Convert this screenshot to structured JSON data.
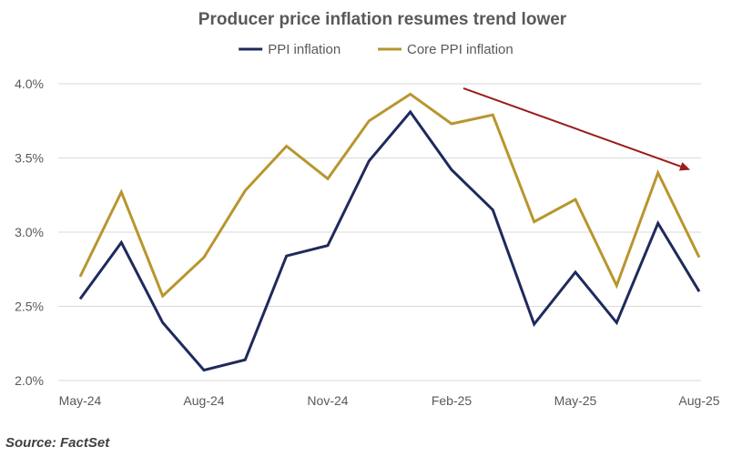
{
  "chart_data": {
    "type": "line",
    "title": "Producer price inflation resumes trend lower",
    "xlabel": "",
    "ylabel": "",
    "categories": [
      "May-24",
      "Jun-24",
      "Jul-24",
      "Aug-24",
      "Sep-24",
      "Oct-24",
      "Nov-24",
      "Dec-24",
      "Jan-25",
      "Feb-25",
      "Mar-25",
      "Apr-25",
      "May-25",
      "Jun-25",
      "Jul-25",
      "Aug-25"
    ],
    "x_tick_labels": [
      "May-24",
      "Aug-24",
      "Nov-24",
      "Feb-25",
      "May-25",
      "Aug-25"
    ],
    "ylim": [
      2.0,
      4.0
    ],
    "y_ticks": [
      2.0,
      2.5,
      3.0,
      3.5,
      4.0
    ],
    "y_tick_labels": [
      "2.0%",
      "2.5%",
      "3.0%",
      "3.5%",
      "4.0%"
    ],
    "grid": true,
    "legend_position": "top-center",
    "series": [
      {
        "name": "PPI inflation",
        "color": "#1f2a5c",
        "values": [
          2.55,
          2.93,
          2.39,
          2.07,
          2.14,
          2.84,
          2.91,
          3.48,
          3.81,
          3.42,
          3.15,
          2.38,
          2.73,
          2.39,
          3.06,
          2.6
        ]
      },
      {
        "name": "Core PPI inflation",
        "color": "#b8962e",
        "values": [
          2.7,
          3.27,
          2.57,
          2.83,
          3.28,
          3.58,
          3.36,
          3.75,
          3.93,
          3.73,
          3.79,
          3.07,
          3.22,
          2.64,
          3.4,
          2.83
        ]
      }
    ],
    "annotations": [
      {
        "type": "trend-arrow",
        "color": "#9b1c1c",
        "from": {
          "x": "Feb-25",
          "y": 3.97
        },
        "to": {
          "x": "Aug-25",
          "y": 3.42
        }
      }
    ]
  },
  "source": "Source: FactSet"
}
